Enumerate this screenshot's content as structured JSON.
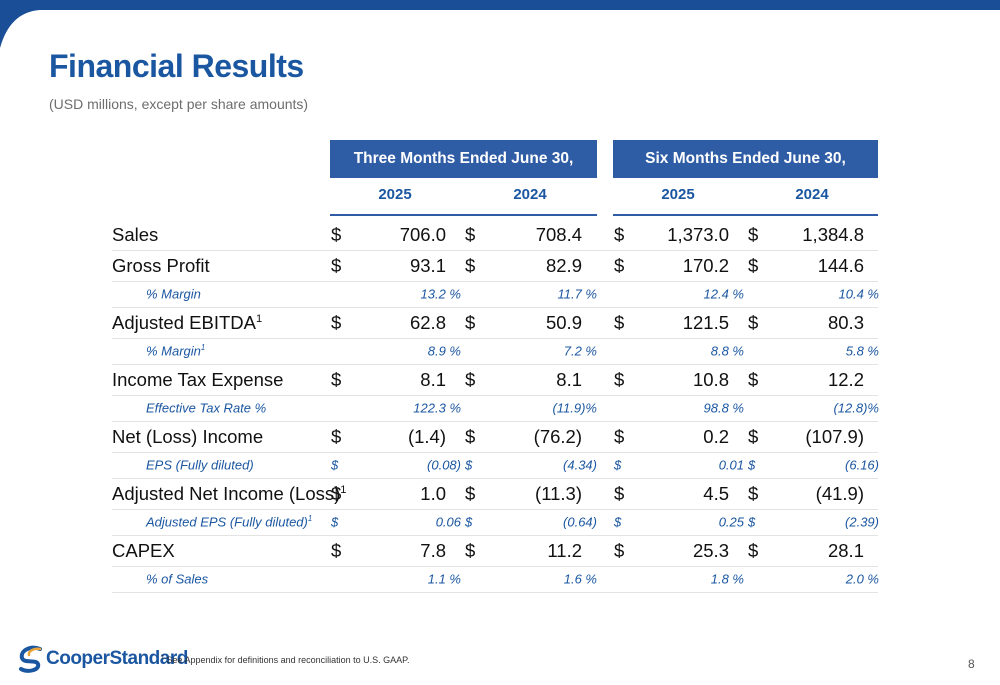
{
  "header": {
    "title": "Financial Results",
    "subtitle": "(USD millions, except per share amounts)"
  },
  "table": {
    "group_headers": [
      "Three Months Ended June 30,",
      "Six Months Ended June 30,"
    ],
    "years": [
      "2025",
      "2024",
      "2025",
      "2024"
    ],
    "rows": [
      {
        "type": "main",
        "label": "Sales",
        "sup": "",
        "values": [
          {
            "c": "$",
            "v": "706.0"
          },
          {
            "c": "$",
            "v": "708.4"
          },
          {
            "c": "$",
            "v": "1,373.0"
          },
          {
            "c": "$",
            "v": "1,384.8"
          }
        ]
      },
      {
        "type": "main",
        "label": "Gross Profit",
        "sup": "",
        "values": [
          {
            "c": "$",
            "v": "93.1"
          },
          {
            "c": "$",
            "v": "82.9"
          },
          {
            "c": "$",
            "v": "170.2"
          },
          {
            "c": "$",
            "v": "144.6"
          }
        ]
      },
      {
        "type": "sub",
        "label": "% Margin",
        "sup": "",
        "values": [
          {
            "c": "",
            "v": "13.2 %"
          },
          {
            "c": "",
            "v": "11.7 %"
          },
          {
            "c": "",
            "v": "12.4 %"
          },
          {
            "c": "",
            "v": "10.4 %"
          }
        ]
      },
      {
        "type": "main",
        "label": "Adjusted EBITDA",
        "sup": "1",
        "values": [
          {
            "c": "$",
            "v": "62.8"
          },
          {
            "c": "$",
            "v": "50.9"
          },
          {
            "c": "$",
            "v": "121.5"
          },
          {
            "c": "$",
            "v": "80.3"
          }
        ]
      },
      {
        "type": "sub",
        "label": "% Margin",
        "sup": "1",
        "values": [
          {
            "c": "",
            "v": "8.9 %"
          },
          {
            "c": "",
            "v": "7.2 %"
          },
          {
            "c": "",
            "v": "8.8 %"
          },
          {
            "c": "",
            "v": "5.8 %"
          }
        ]
      },
      {
        "type": "main",
        "label": "Income Tax Expense",
        "sup": "",
        "values": [
          {
            "c": "$",
            "v": "8.1"
          },
          {
            "c": "$",
            "v": "8.1"
          },
          {
            "c": "$",
            "v": "10.8"
          },
          {
            "c": "$",
            "v": "12.2"
          }
        ]
      },
      {
        "type": "sub",
        "label": "Effective Tax Rate %",
        "sup": "",
        "values": [
          {
            "c": "",
            "v": "122.3 %"
          },
          {
            "c": "",
            "v": "(11.9)%"
          },
          {
            "c": "",
            "v": "98.8 %"
          },
          {
            "c": "",
            "v": "(12.8)%"
          }
        ]
      },
      {
        "type": "main",
        "label": "Net (Loss) Income",
        "sup": "",
        "values": [
          {
            "c": "$",
            "v": "(1.4)"
          },
          {
            "c": "$",
            "v": "(76.2)"
          },
          {
            "c": "$",
            "v": "0.2"
          },
          {
            "c": "$",
            "v": "(107.9)"
          }
        ]
      },
      {
        "type": "sub",
        "label": "EPS (Fully diluted)",
        "sup": "",
        "values": [
          {
            "c": "$",
            "v": "(0.08)"
          },
          {
            "c": "$",
            "v": "(4.34)"
          },
          {
            "c": "$",
            "v": "0.01"
          },
          {
            "c": "$",
            "v": "(6.16)"
          }
        ]
      },
      {
        "type": "main",
        "label": "Adjusted Net Income (Loss)",
        "sup": "1",
        "values": [
          {
            "c": "$",
            "v": "1.0"
          },
          {
            "c": "$",
            "v": "(11.3)"
          },
          {
            "c": "$",
            "v": "4.5"
          },
          {
            "c": "$",
            "v": "(41.9)"
          }
        ]
      },
      {
        "type": "sub",
        "label": "Adjusted EPS (Fully diluted)",
        "sup": "1",
        "values": [
          {
            "c": "$",
            "v": "0.06"
          },
          {
            "c": "$",
            "v": "(0.64)"
          },
          {
            "c": "$",
            "v": "0.25"
          },
          {
            "c": "$",
            "v": "(2.39)"
          }
        ]
      },
      {
        "type": "main",
        "label": "CAPEX",
        "sup": "",
        "values": [
          {
            "c": "$",
            "v": "7.8"
          },
          {
            "c": "$",
            "v": "11.2"
          },
          {
            "c": "$",
            "v": "25.3"
          },
          {
            "c": "$",
            "v": "28.1"
          }
        ]
      },
      {
        "type": "sub",
        "label": "% of Sales",
        "sup": "",
        "values": [
          {
            "c": "",
            "v": "1.1 %"
          },
          {
            "c": "",
            "v": "1.6 %"
          },
          {
            "c": "",
            "v": "1.8 %"
          },
          {
            "c": "",
            "v": "2.0 %"
          }
        ]
      }
    ]
  },
  "footer": {
    "logo_text": "CooperStandard",
    "footnote_sup": "1",
    "footnote": "See Appendix for definitions and reconciliation to U.S. GAAP.",
    "page_number": "8"
  },
  "colors": {
    "brand_blue": "#1b57a1",
    "header_fill": "#2f5da5"
  }
}
